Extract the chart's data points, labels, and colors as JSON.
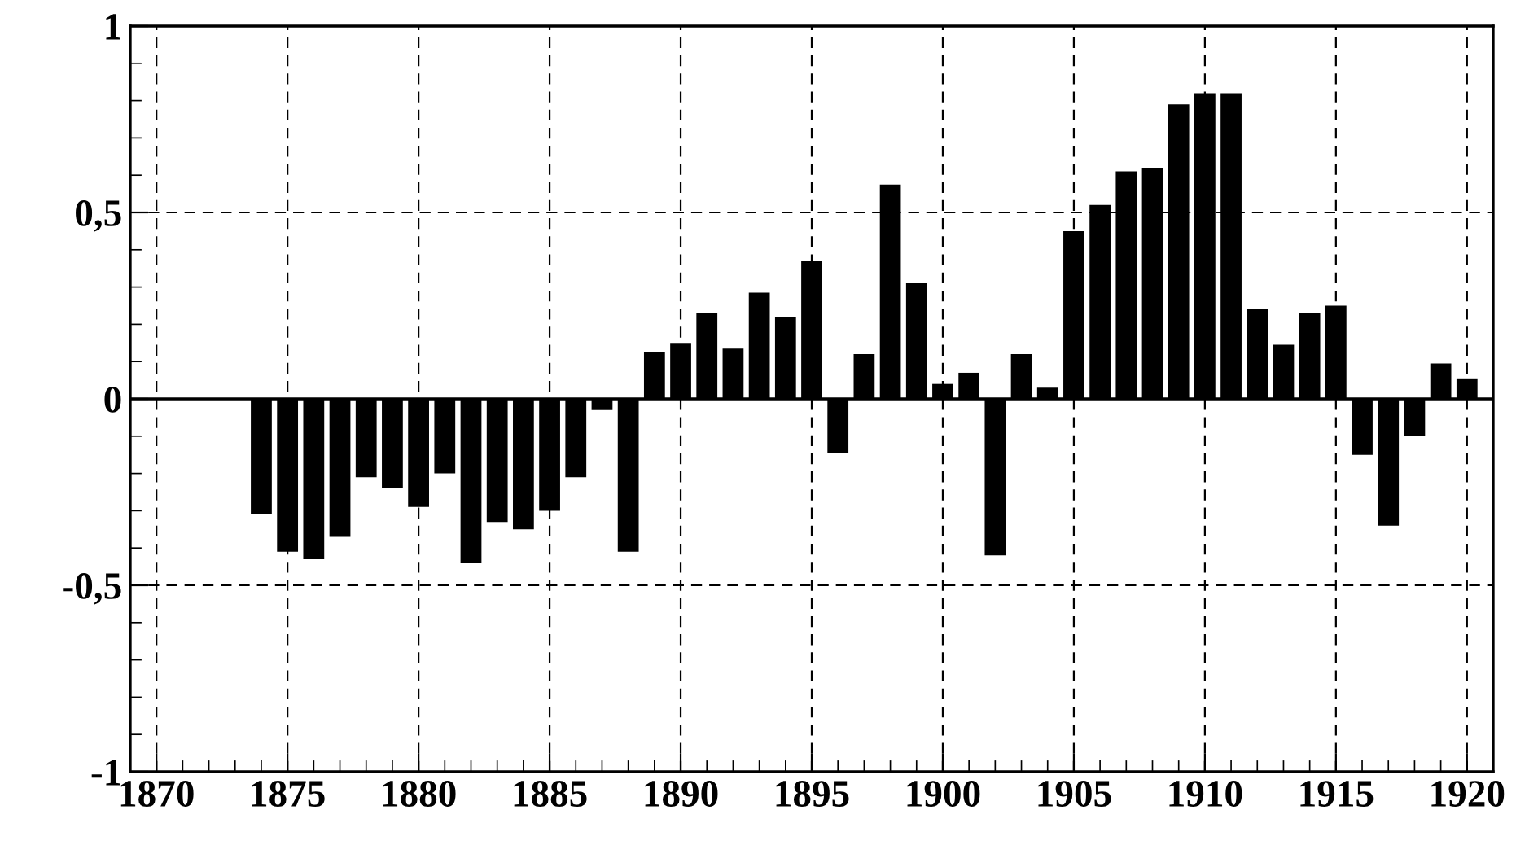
{
  "chart_data": {
    "type": "bar",
    "x": [
      1874,
      1875,
      1876,
      1877,
      1878,
      1879,
      1880,
      1881,
      1882,
      1883,
      1884,
      1885,
      1886,
      1887,
      1888,
      1889,
      1890,
      1891,
      1892,
      1893,
      1894,
      1895,
      1896,
      1897,
      1898,
      1899,
      1900,
      1901,
      1902,
      1903,
      1904,
      1905,
      1906,
      1907,
      1908,
      1909,
      1910,
      1911,
      1912,
      1913,
      1914,
      1915,
      1916,
      1917,
      1918,
      1919,
      1920
    ],
    "values": [
      -0.31,
      -0.41,
      -0.43,
      -0.37,
      -0.21,
      -0.24,
      -0.29,
      -0.2,
      -0.44,
      -0.33,
      -0.35,
      -0.3,
      -0.21,
      -0.03,
      -0.41,
      0.125,
      0.15,
      0.23,
      0.135,
      0.285,
      0.22,
      0.37,
      -0.145,
      0.12,
      0.575,
      0.31,
      0.04,
      0.07,
      -0.42,
      0.12,
      0.03,
      0.45,
      0.52,
      0.61,
      0.62,
      0.79,
      0.82,
      0.82,
      0.24,
      0.145,
      0.23,
      0.25,
      -0.15,
      -0.34,
      -0.1,
      0.095,
      0.055
    ],
    "color": "#000000",
    "xlim": [
      1869,
      1921
    ],
    "xticks": [
      1870,
      1875,
      1880,
      1885,
      1890,
      1895,
      1900,
      1905,
      1910,
      1915,
      1920
    ],
    "ylim": [
      -1,
      1
    ],
    "yticks": [
      {
        "value": -1,
        "label": "-1"
      },
      {
        "value": -0.5,
        "label": "-0,5"
      },
      {
        "value": 0,
        "label": "0"
      },
      {
        "value": 0.5,
        "label": "0,5"
      },
      {
        "value": 1,
        "label": "1"
      }
    ],
    "grid": true,
    "ref_lines": [
      {
        "axis": "y",
        "value": 0,
        "color": "#000000",
        "line_style": "solid"
      }
    ]
  }
}
